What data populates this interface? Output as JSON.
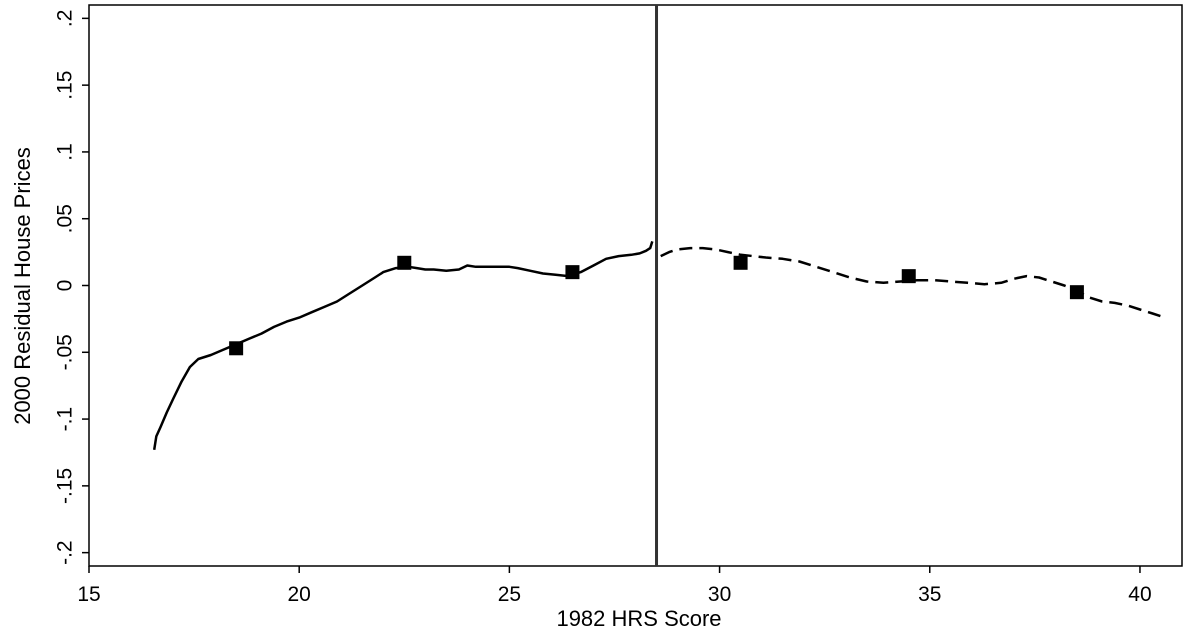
{
  "chart_data": {
    "type": "line",
    "xlabel": "1982 HRS Score",
    "ylabel": "2000 Residual House Prices",
    "xlim": [
      15,
      41
    ],
    "ylim": [
      -0.21,
      0.21
    ],
    "x_ticks": [
      {
        "value": 15,
        "label": "15"
      },
      {
        "value": 20,
        "label": "20"
      },
      {
        "value": 25,
        "label": "25"
      },
      {
        "value": 30,
        "label": "30"
      },
      {
        "value": 35,
        "label": "35"
      },
      {
        "value": 40,
        "label": "40"
      }
    ],
    "y_ticks": [
      {
        "value": -0.2,
        "label": "-.2"
      },
      {
        "value": -0.15,
        "label": "-.15"
      },
      {
        "value": -0.1,
        "label": "-.1"
      },
      {
        "value": -0.05,
        "label": "-.05"
      },
      {
        "value": 0,
        "label": "0"
      },
      {
        "value": 0.05,
        "label": ".05"
      },
      {
        "value": 0.1,
        "label": ".1"
      },
      {
        "value": 0.15,
        "label": ".15"
      },
      {
        "value": 0.2,
        "label": ".2"
      }
    ],
    "grid": false,
    "cutoff": 28.5,
    "series": [
      {
        "style": "solid",
        "x": [
          16.55,
          16.6,
          16.7,
          16.85,
          17.0,
          17.2,
          17.4,
          17.6,
          17.9,
          18.2,
          18.5,
          18.8,
          19.1,
          19.4,
          19.7,
          20.0,
          20.3,
          20.6,
          20.9,
          21.2,
          21.5,
          21.8,
          22.0,
          22.3,
          22.6,
          22.8,
          23.0,
          23.2,
          23.5,
          23.8,
          24.0,
          24.2,
          24.5,
          24.8,
          25.0,
          25.2,
          25.5,
          25.8,
          26.1,
          26.4,
          26.7,
          27.0,
          27.3,
          27.6,
          27.9,
          28.1,
          28.25,
          28.35,
          28.4
        ],
        "y": [
          -0.123,
          -0.113,
          -0.106,
          -0.095,
          -0.085,
          -0.072,
          -0.061,
          -0.055,
          -0.052,
          -0.048,
          -0.044,
          -0.04,
          -0.036,
          -0.031,
          -0.027,
          -0.024,
          -0.02,
          -0.016,
          -0.012,
          -0.006,
          0.0,
          0.006,
          0.01,
          0.013,
          0.014,
          0.013,
          0.012,
          0.012,
          0.011,
          0.012,
          0.015,
          0.014,
          0.014,
          0.014,
          0.014,
          0.013,
          0.011,
          0.009,
          0.008,
          0.007,
          0.01,
          0.015,
          0.02,
          0.022,
          0.023,
          0.024,
          0.026,
          0.028,
          0.033
        ]
      },
      {
        "style": "dashed",
        "x": [
          28.6,
          28.8,
          29.0,
          29.3,
          29.6,
          29.9,
          30.2,
          30.5,
          30.8,
          31.1,
          31.5,
          31.9,
          32.3,
          32.7,
          33.1,
          33.5,
          33.9,
          34.3,
          34.7,
          35.1,
          35.5,
          35.9,
          36.3,
          36.7,
          37.0,
          37.3,
          37.6,
          37.9,
          38.2,
          38.5,
          38.8,
          39.1,
          39.4,
          39.7,
          40.0,
          40.3,
          40.5
        ],
        "y": [
          0.022,
          0.025,
          0.027,
          0.028,
          0.028,
          0.027,
          0.025,
          0.023,
          0.022,
          0.021,
          0.02,
          0.018,
          0.014,
          0.01,
          0.006,
          0.003,
          0.002,
          0.003,
          0.004,
          0.004,
          0.003,
          0.002,
          0.001,
          0.002,
          0.005,
          0.007,
          0.006,
          0.003,
          0.0,
          -0.004,
          -0.009,
          -0.012,
          -0.013,
          -0.015,
          -0.018,
          -0.021,
          -0.023
        ]
      }
    ],
    "bin_means": {
      "x": [
        18.5,
        22.5,
        26.5,
        30.5,
        34.5,
        38.5
      ],
      "y": [
        -0.047,
        0.017,
        0.01,
        0.017,
        0.007,
        -0.005
      ]
    }
  }
}
